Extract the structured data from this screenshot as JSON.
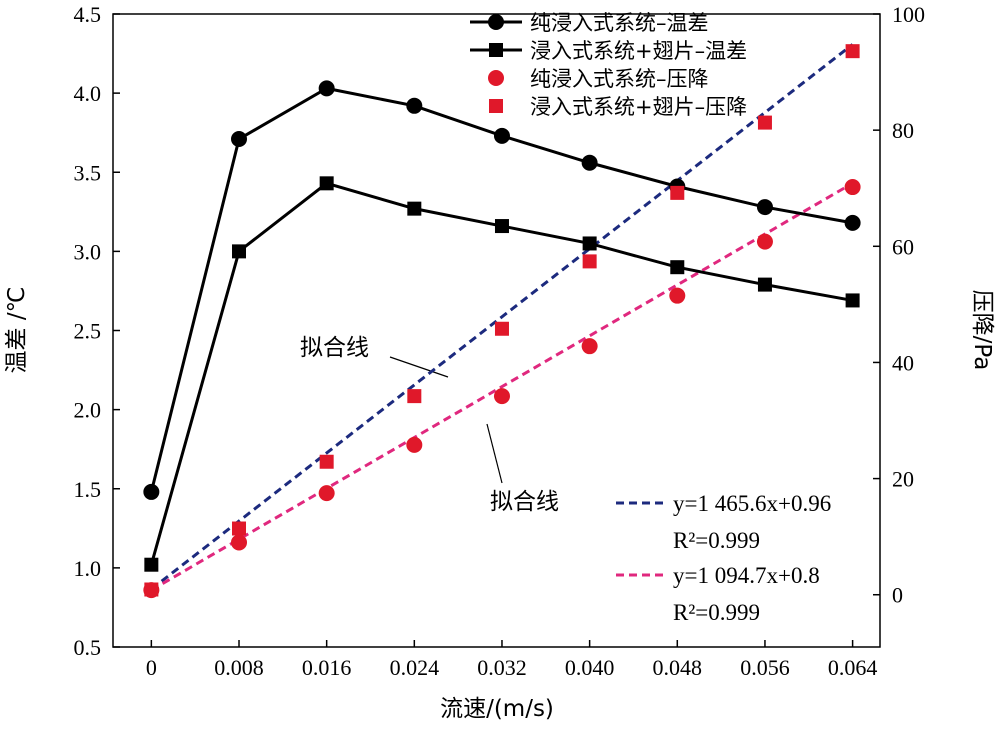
{
  "chart_data": {
    "type": "line",
    "xlabel": "流速/(m/s)",
    "ylabel_left": "温差 /℃",
    "ylabel_right": "压降/Pa",
    "x": [
      0,
      0.008,
      0.016,
      0.024,
      0.032,
      0.04,
      0.048,
      0.056,
      0.064
    ],
    "x_tick_labels": [
      "0",
      "0.008",
      "0.016",
      "0.024",
      "0.032",
      "0.040",
      "0.048",
      "0.056",
      "0.064"
    ],
    "y_left_ticks": [
      "0.5",
      "1.0",
      "1.5",
      "2.0",
      "2.5",
      "3.0",
      "3.5",
      "4.0",
      "4.5"
    ],
    "y_right_ticks": [
      "0",
      "20",
      "40",
      "60",
      "80",
      "100"
    ],
    "xlim": [
      -0.0035,
      0.0665
    ],
    "ylim_left": [
      0.5,
      4.5
    ],
    "ylim_right": [
      -9,
      100
    ],
    "series": [
      {
        "name": "纯浸入式系统–温差",
        "axis": "left",
        "marker": "circle",
        "color": "#000000",
        "line": true,
        "values": [
          1.48,
          3.71,
          4.03,
          3.92,
          3.73,
          3.56,
          3.41,
          3.28,
          3.18
        ]
      },
      {
        "name": "浸入式系统+翅片–温差",
        "axis": "left",
        "marker": "square",
        "color": "#000000",
        "line": true,
        "values": [
          1.02,
          3.0,
          3.43,
          3.27,
          3.16,
          3.05,
          2.9,
          2.79,
          2.69
        ]
      },
      {
        "name": "纯浸入式系统–压降",
        "axis": "right",
        "marker": "circle",
        "color": "#e0182a",
        "line": false,
        "values": [
          0.8,
          9.0,
          17.5,
          25.8,
          34.2,
          42.8,
          51.5,
          60.8,
          70.2
        ]
      },
      {
        "name": "浸入式系统+翅片–压降",
        "axis": "right",
        "marker": "square",
        "color": "#e0182a",
        "line": false,
        "values": [
          0.9,
          11.4,
          22.9,
          34.2,
          45.8,
          57.4,
          69.2,
          81.3,
          93.6
        ]
      }
    ],
    "fits": [
      {
        "equation": "y=1 465.6x+0.96",
        "r2": "R²=0.999",
        "slope": 1465.6,
        "intercept": 0.96,
        "color": "#1c2a7e"
      },
      {
        "equation": "y=1 094.7x+0.8",
        "r2": "R²=0.999",
        "slope": 1094.7,
        "intercept": 0.8,
        "color": "#e0287e"
      }
    ],
    "annotations": [
      "拟合线",
      "拟合线"
    ],
    "legend_position": "top-right",
    "grid": false
  }
}
